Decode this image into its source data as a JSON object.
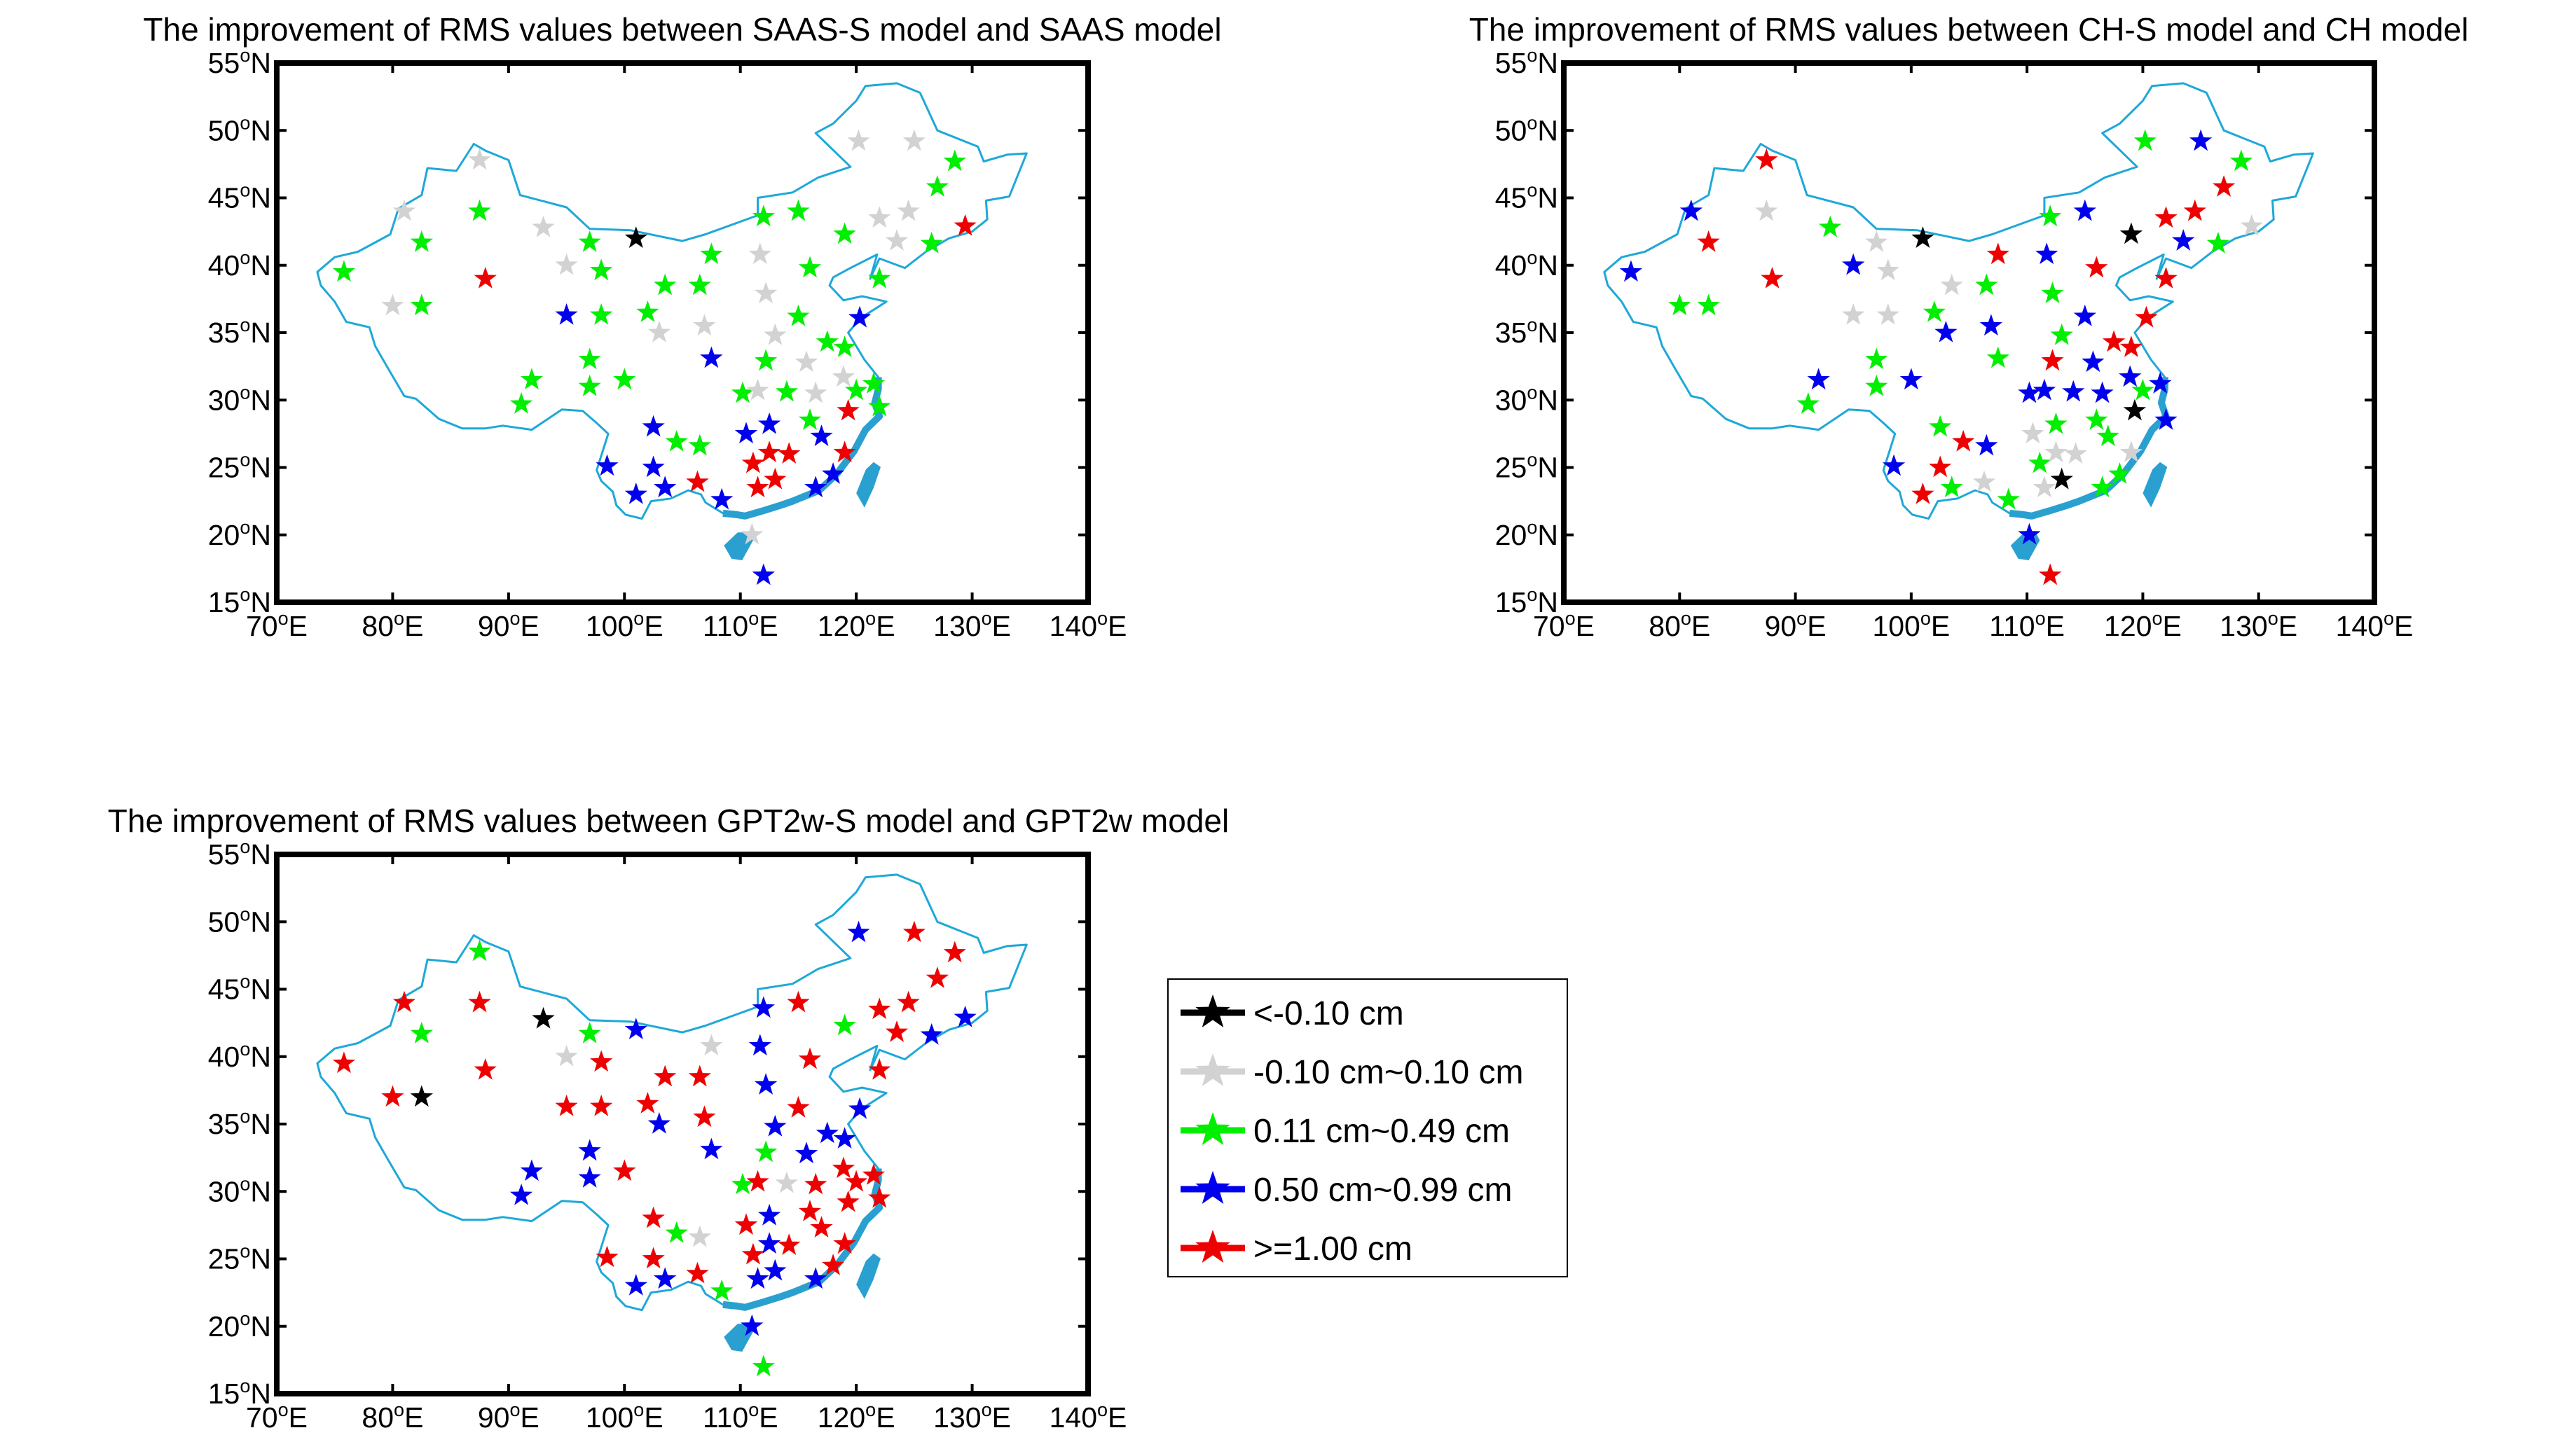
{
  "chart_data": [
    {
      "type": "scatter",
      "title": "The improvement of RMS values between SAAS-S model and SAAS model",
      "xlim": [
        70,
        140
      ],
      "ylim": [
        15,
        55
      ],
      "xticks": [
        "70",
        "80",
        "90",
        "100",
        "110",
        "120",
        "130",
        "140"
      ],
      "yticks": [
        "55",
        "50",
        "45",
        "40",
        "35",
        "30",
        "25",
        "20",
        "15"
      ],
      "x_suffix": "E",
      "y_suffix": "N",
      "degree_mark": "o",
      "points": [
        [
          87.5,
          47.8,
          1
        ],
        [
          81,
          44,
          1
        ],
        [
          82.5,
          41.7,
          2
        ],
        [
          87.5,
          44,
          2
        ],
        [
          75.8,
          39.5,
          2
        ],
        [
          80,
          37,
          1
        ],
        [
          82.5,
          37,
          2
        ],
        [
          88,
          39,
          4
        ],
        [
          93,
          42.8,
          1
        ],
        [
          95,
          40,
          1
        ],
        [
          97,
          41.7,
          2
        ],
        [
          98,
          39.6,
          2
        ],
        [
          101,
          42,
          0
        ],
        [
          103.5,
          38.5,
          2
        ],
        [
          102,
          36.5,
          2
        ],
        [
          103,
          35,
          1
        ],
        [
          98,
          36.3,
          2
        ],
        [
          95,
          36.3,
          3
        ],
        [
          97,
          33,
          2
        ],
        [
          97,
          31,
          2
        ],
        [
          100,
          31.5,
          2
        ],
        [
          92,
          31.5,
          2
        ],
        [
          91.1,
          29.7,
          2
        ],
        [
          106.5,
          38.5,
          2
        ],
        [
          107.5,
          40.8,
          2
        ],
        [
          106.9,
          35.5,
          1
        ],
        [
          107.5,
          33.1,
          3
        ],
        [
          106.5,
          26.6,
          2
        ],
        [
          104.5,
          26.9,
          2
        ],
        [
          102.5,
          28,
          3
        ],
        [
          106.3,
          23.9,
          4
        ],
        [
          103.5,
          23.5,
          3
        ],
        [
          102.5,
          25,
          3
        ],
        [
          101,
          23,
          3
        ],
        [
          98.5,
          25.1,
          3
        ],
        [
          108.4,
          22.6,
          3
        ],
        [
          110.2,
          30.5,
          2
        ],
        [
          110.5,
          27.5,
          3
        ],
        [
          111.1,
          25.3,
          4
        ],
        [
          111.5,
          23.5,
          4
        ],
        [
          112.5,
          26.1,
          4
        ],
        [
          113,
          24.1,
          4
        ],
        [
          114.2,
          26,
          4
        ],
        [
          112.5,
          28.2,
          3
        ],
        [
          111.5,
          30.7,
          1
        ],
        [
          112.2,
          32.9,
          2
        ],
        [
          113,
          34.8,
          1
        ],
        [
          112.2,
          37.9,
          1
        ],
        [
          111.7,
          40.8,
          1
        ],
        [
          112,
          43.6,
          2
        ],
        [
          115,
          44,
          2
        ],
        [
          116,
          39.8,
          2
        ],
        [
          115,
          36.2,
          2
        ],
        [
          114,
          30.6,
          2
        ],
        [
          115.7,
          32.8,
          1
        ],
        [
          116,
          28.5,
          2
        ],
        [
          116.5,
          30.5,
          1
        ],
        [
          117.5,
          34.3,
          2
        ],
        [
          117,
          27.3,
          3
        ],
        [
          116.5,
          23.5,
          3
        ],
        [
          118,
          24.5,
          3
        ],
        [
          119,
          26.1,
          4
        ],
        [
          119.3,
          29.2,
          4
        ],
        [
          118.9,
          31.7,
          1
        ],
        [
          120,
          30.7,
          2
        ],
        [
          121.5,
          31.2,
          2
        ],
        [
          122,
          29.5,
          2
        ],
        [
          119,
          33.9,
          2
        ],
        [
          120.3,
          36.1,
          3
        ],
        [
          122,
          39,
          2
        ],
        [
          119,
          42.3,
          2
        ],
        [
          122,
          43.5,
          1
        ],
        [
          123.5,
          41.8,
          1
        ],
        [
          124.5,
          44,
          1
        ],
        [
          120.2,
          49.2,
          1
        ],
        [
          125,
          49.2,
          1
        ],
        [
          127,
          45.8,
          2
        ],
        [
          128.5,
          47.7,
          2
        ],
        [
          126.5,
          41.6,
          2
        ],
        [
          129.4,
          42.9,
          4
        ],
        [
          111,
          20,
          1
        ],
        [
          112,
          17,
          3
        ]
      ]
    },
    {
      "type": "scatter",
      "title": "The improvement of RMS values between CH-S model and CH model",
      "xlim": [
        70,
        140
      ],
      "ylim": [
        15,
        55
      ],
      "xticks": [
        "70",
        "80",
        "90",
        "100",
        "110",
        "120",
        "130",
        "140"
      ],
      "yticks": [
        "55",
        "50",
        "45",
        "40",
        "35",
        "30",
        "25",
        "20",
        "15"
      ],
      "x_suffix": "E",
      "y_suffix": "N",
      "degree_mark": "o",
      "points": [
        [
          87.5,
          47.8,
          4
        ],
        [
          81,
          44,
          3
        ],
        [
          82.5,
          41.7,
          4
        ],
        [
          87.5,
          44,
          1
        ],
        [
          75.8,
          39.5,
          3
        ],
        [
          80,
          37,
          2
        ],
        [
          82.5,
          37,
          2
        ],
        [
          88,
          39,
          4
        ],
        [
          93,
          42.8,
          2
        ],
        [
          95,
          40,
          3
        ],
        [
          97,
          41.7,
          1
        ],
        [
          98,
          39.6,
          1
        ],
        [
          101,
          42,
          0
        ],
        [
          103.5,
          38.5,
          1
        ],
        [
          102,
          36.5,
          2
        ],
        [
          103,
          35,
          3
        ],
        [
          98,
          36.3,
          1
        ],
        [
          95,
          36.3,
          1
        ],
        [
          97,
          33,
          2
        ],
        [
          97,
          31,
          2
        ],
        [
          100,
          31.5,
          3
        ],
        [
          92,
          31.5,
          3
        ],
        [
          91.1,
          29.7,
          2
        ],
        [
          106.5,
          38.5,
          2
        ],
        [
          107.5,
          40.8,
          4
        ],
        [
          106.9,
          35.5,
          3
        ],
        [
          107.5,
          33.1,
          2
        ],
        [
          106.5,
          26.6,
          3
        ],
        [
          104.5,
          26.9,
          4
        ],
        [
          102.5,
          28,
          2
        ],
        [
          106.3,
          23.9,
          1
        ],
        [
          103.5,
          23.5,
          2
        ],
        [
          102.5,
          25,
          4
        ],
        [
          101,
          23,
          4
        ],
        [
          98.5,
          25.1,
          3
        ],
        [
          108.4,
          22.6,
          2
        ],
        [
          110.2,
          30.5,
          3
        ],
        [
          110.5,
          27.5,
          1
        ],
        [
          111.1,
          25.3,
          2
        ],
        [
          111.5,
          23.5,
          1
        ],
        [
          112.5,
          26.1,
          1
        ],
        [
          113,
          24.1,
          0
        ],
        [
          114.2,
          26,
          1
        ],
        [
          112.5,
          28.2,
          2
        ],
        [
          111.5,
          30.7,
          3
        ],
        [
          112.2,
          32.9,
          4
        ],
        [
          113,
          34.8,
          2
        ],
        [
          112.2,
          37.9,
          2
        ],
        [
          111.7,
          40.8,
          3
        ],
        [
          112,
          43.6,
          2
        ],
        [
          115,
          44,
          3
        ],
        [
          116,
          39.8,
          4
        ],
        [
          115,
          36.2,
          3
        ],
        [
          114,
          30.6,
          3
        ],
        [
          115.7,
          32.8,
          3
        ],
        [
          116,
          28.5,
          2
        ],
        [
          116.5,
          30.5,
          3
        ],
        [
          117.5,
          34.3,
          4
        ],
        [
          117,
          27.3,
          2
        ],
        [
          116.5,
          23.5,
          2
        ],
        [
          118,
          24.5,
          2
        ],
        [
          119,
          26.1,
          1
        ],
        [
          119.3,
          29.2,
          0
        ],
        [
          118.9,
          31.7,
          3
        ],
        [
          120,
          30.7,
          2
        ],
        [
          121.5,
          31.2,
          3
        ],
        [
          122,
          28.5,
          3
        ],
        [
          119,
          33.9,
          4
        ],
        [
          120.3,
          36.1,
          4
        ],
        [
          122,
          39,
          4
        ],
        [
          119,
          42.3,
          0
        ],
        [
          122,
          43.5,
          4
        ],
        [
          123.5,
          41.8,
          3
        ],
        [
          124.5,
          44,
          4
        ],
        [
          120.2,
          49.2,
          2
        ],
        [
          125,
          49.2,
          3
        ],
        [
          127,
          45.8,
          4
        ],
        [
          128.5,
          47.7,
          2
        ],
        [
          126.5,
          41.6,
          2
        ],
        [
          129.4,
          42.9,
          1
        ],
        [
          110.2,
          20,
          3
        ],
        [
          112,
          17,
          4
        ]
      ]
    },
    {
      "type": "scatter",
      "title": "The improvement of RMS values between GPT2w-S model and GPT2w model",
      "xlim": [
        70,
        140
      ],
      "ylim": [
        15,
        55
      ],
      "xticks": [
        "70",
        "80",
        "90",
        "100",
        "110",
        "120",
        "130",
        "140"
      ],
      "yticks": [
        "55",
        "50",
        "45",
        "40",
        "35",
        "30",
        "25",
        "20",
        "15"
      ],
      "x_suffix": "E",
      "y_suffix": "N",
      "degree_mark": "o",
      "points": [
        [
          87.5,
          47.8,
          2
        ],
        [
          81,
          44,
          4
        ],
        [
          82.5,
          41.7,
          2
        ],
        [
          87.5,
          44,
          4
        ],
        [
          75.8,
          39.5,
          4
        ],
        [
          80,
          37,
          4
        ],
        [
          82.5,
          37,
          0
        ],
        [
          88,
          39,
          4
        ],
        [
          93,
          42.8,
          0
        ],
        [
          95,
          40,
          1
        ],
        [
          97,
          41.7,
          2
        ],
        [
          98,
          39.6,
          4
        ],
        [
          101,
          42,
          3
        ],
        [
          103.5,
          38.5,
          4
        ],
        [
          102,
          36.5,
          4
        ],
        [
          103,
          35,
          3
        ],
        [
          98,
          36.3,
          4
        ],
        [
          95,
          36.3,
          4
        ],
        [
          97,
          33,
          3
        ],
        [
          97,
          31,
          3
        ],
        [
          100,
          31.5,
          4
        ],
        [
          92,
          31.5,
          3
        ],
        [
          91.1,
          29.7,
          3
        ],
        [
          106.5,
          38.5,
          4
        ],
        [
          107.5,
          40.8,
          1
        ],
        [
          106.9,
          35.5,
          4
        ],
        [
          107.5,
          33.1,
          3
        ],
        [
          106.5,
          26.6,
          1
        ],
        [
          104.5,
          26.9,
          2
        ],
        [
          102.5,
          28,
          4
        ],
        [
          106.3,
          23.9,
          4
        ],
        [
          103.5,
          23.5,
          3
        ],
        [
          102.5,
          25,
          4
        ],
        [
          101,
          23,
          3
        ],
        [
          98.5,
          25.1,
          4
        ],
        [
          108.4,
          22.6,
          2
        ],
        [
          110.2,
          30.5,
          2
        ],
        [
          110.5,
          27.5,
          4
        ],
        [
          111.1,
          25.3,
          4
        ],
        [
          111.5,
          23.5,
          3
        ],
        [
          112.5,
          26.1,
          3
        ],
        [
          113,
          24.1,
          3
        ],
        [
          114.2,
          26,
          4
        ],
        [
          112.5,
          28.2,
          3
        ],
        [
          111.5,
          30.7,
          4
        ],
        [
          112.2,
          32.9,
          2
        ],
        [
          113,
          34.8,
          3
        ],
        [
          112.2,
          37.9,
          3
        ],
        [
          111.7,
          40.8,
          3
        ],
        [
          112,
          43.6,
          3
        ],
        [
          115,
          44,
          4
        ],
        [
          116,
          39.8,
          4
        ],
        [
          115,
          36.2,
          4
        ],
        [
          114,
          30.6,
          1
        ],
        [
          115.7,
          32.8,
          3
        ],
        [
          116,
          28.5,
          4
        ],
        [
          116.5,
          30.5,
          4
        ],
        [
          117.5,
          34.3,
          3
        ],
        [
          117,
          27.3,
          4
        ],
        [
          116.5,
          23.5,
          3
        ],
        [
          118,
          24.5,
          4
        ],
        [
          119,
          26.1,
          4
        ],
        [
          119.3,
          29.2,
          4
        ],
        [
          118.9,
          31.7,
          4
        ],
        [
          120,
          30.7,
          4
        ],
        [
          121.5,
          31.2,
          4
        ],
        [
          122,
          29.5,
          4
        ],
        [
          119,
          33.9,
          3
        ],
        [
          120.3,
          36.1,
          3
        ],
        [
          122,
          39,
          4
        ],
        [
          119,
          42.3,
          2
        ],
        [
          122,
          43.5,
          4
        ],
        [
          123.5,
          41.8,
          4
        ],
        [
          124.5,
          44,
          4
        ],
        [
          120.2,
          49.2,
          3
        ],
        [
          125,
          49.2,
          4
        ],
        [
          127,
          45.8,
          4
        ],
        [
          128.5,
          47.7,
          4
        ],
        [
          126.5,
          41.6,
          3
        ],
        [
          129.4,
          42.9,
          3
        ],
        [
          111,
          20,
          3
        ],
        [
          112,
          17,
          2
        ]
      ]
    }
  ],
  "legend": {
    "items": [
      {
        "label": "<-0.10 cm",
        "color": "#000000"
      },
      {
        "label": "-0.10 cm~0.10 cm",
        "color": "#d2d2d2"
      },
      {
        "label": "0.11 cm~0.49 cm",
        "color": "#00ee00"
      },
      {
        "label": "0.50 cm~0.99 cm",
        "color": "#0000ee"
      },
      {
        "label": ">=1.00 cm",
        "color": "#ee0000"
      }
    ]
  },
  "colors": {
    "frame": "#000000",
    "border_line": "#1ea8d8",
    "coast": "#2aa0d0"
  }
}
